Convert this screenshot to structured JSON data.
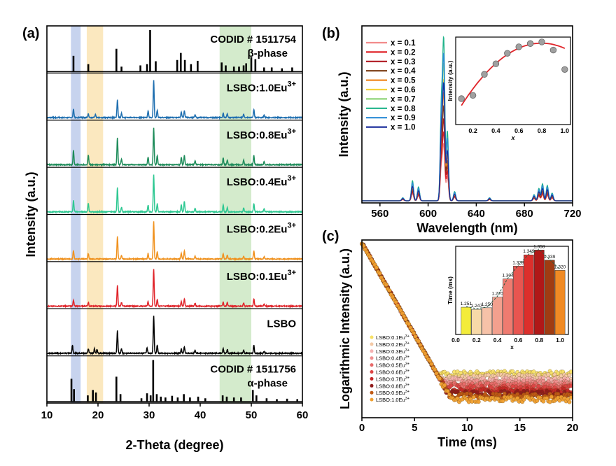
{
  "panels": {
    "a": "(a)",
    "b": "(b)",
    "c": "(c)"
  },
  "chart_data": [
    {
      "type": "line",
      "panel": "(a)",
      "xlabel": "2-Theta (degree)",
      "ylabel": "Intensity (a.u.)",
      "xlim": [
        10,
        60
      ],
      "xticks": [
        10,
        20,
        30,
        40,
        50,
        60
      ],
      "highlight_bands": [
        {
          "x": [
            14.7,
            16.6
          ],
          "color": "#c7d3ee"
        },
        {
          "x": [
            17.8,
            21.0
          ],
          "color": "#fbe8bf"
        },
        {
          "x": [
            43.8,
            50.0
          ],
          "color": "#d4ebcc"
        }
      ],
      "series": [
        {
          "name": "CODID # 1511754",
          "subtitle": "β-phase",
          "color": "#000000",
          "style": "stick",
          "peaks": [
            [
              15.2,
              0.38
            ],
            [
              18.1,
              0.18
            ],
            [
              23.6,
              0.55
            ],
            [
              24.6,
              0.12
            ],
            [
              28.3,
              0.15
            ],
            [
              29.6,
              0.18
            ],
            [
              30.2,
              1.0
            ],
            [
              31.3,
              0.25
            ],
            [
              35.5,
              0.28
            ],
            [
              36.2,
              0.45
            ],
            [
              37.0,
              0.28
            ],
            [
              38.2,
              0.18
            ],
            [
              39.5,
              0.26
            ],
            [
              44.2,
              0.22
            ],
            [
              45.0,
              0.15
            ],
            [
              46.6,
              0.12
            ],
            [
              47.6,
              0.12
            ],
            [
              48.5,
              0.15
            ],
            [
              49.0,
              0.2
            ],
            [
              50.0,
              0.35
            ],
            [
              50.8,
              0.3
            ],
            [
              52.5,
              0.1
            ],
            [
              54.0,
              0.1
            ],
            [
              56.0,
              0.08
            ],
            [
              58.0,
              0.1
            ]
          ]
        },
        {
          "name": "LSBO:1.0Eu",
          "sup": "3+",
          "color": "#1f6fb0",
          "style": "pattern",
          "peaks": [
            [
              15.2,
              0.22
            ],
            [
              18.1,
              0.1
            ],
            [
              19.5,
              0.08
            ],
            [
              23.8,
              0.48
            ],
            [
              24.6,
              0.12
            ],
            [
              29.8,
              0.18
            ],
            [
              30.9,
              1.0
            ],
            [
              31.6,
              0.2
            ],
            [
              36.3,
              0.15
            ],
            [
              36.9,
              0.18
            ],
            [
              39.0,
              0.08
            ],
            [
              44.5,
              0.12
            ],
            [
              45.3,
              0.1
            ],
            [
              48.5,
              0.1
            ],
            [
              50.5,
              0.22
            ],
            [
              52.5,
              0.06
            ]
          ]
        },
        {
          "name": "LSBO:0.8Eu",
          "sup": "3+",
          "color": "#1e8c5a",
          "style": "pattern",
          "peaks": [
            [
              15.2,
              0.38
            ],
            [
              18.1,
              0.25
            ],
            [
              23.8,
              0.72
            ],
            [
              24.6,
              0.15
            ],
            [
              29.8,
              0.2
            ],
            [
              30.9,
              1.0
            ],
            [
              31.6,
              0.25
            ],
            [
              36.3,
              0.2
            ],
            [
              36.9,
              0.25
            ],
            [
              39.0,
              0.1
            ],
            [
              44.5,
              0.18
            ],
            [
              45.3,
              0.12
            ],
            [
              48.5,
              0.12
            ],
            [
              50.5,
              0.25
            ],
            [
              52.5,
              0.08
            ]
          ]
        },
        {
          "name": "LSBO:0.4Eu",
          "sup": "3+",
          "color": "#2ec892",
          "style": "pattern",
          "peaks": [
            [
              15.2,
              0.3
            ],
            [
              18.1,
              0.22
            ],
            [
              23.8,
              0.65
            ],
            [
              24.6,
              0.12
            ],
            [
              29.8,
              0.18
            ],
            [
              30.9,
              1.0
            ],
            [
              31.6,
              0.22
            ],
            [
              36.3,
              0.18
            ],
            [
              36.9,
              0.28
            ],
            [
              39.0,
              0.1
            ],
            [
              44.5,
              0.18
            ],
            [
              45.3,
              0.12
            ],
            [
              48.5,
              0.1
            ],
            [
              50.5,
              0.22
            ],
            [
              52.5,
              0.08
            ]
          ]
        },
        {
          "name": "LSBO:0.2Eu",
          "sup": "3+",
          "color": "#f0921f",
          "style": "pattern",
          "peaks": [
            [
              15.2,
              0.22
            ],
            [
              18.1,
              0.15
            ],
            [
              23.8,
              0.6
            ],
            [
              24.6,
              0.1
            ],
            [
              29.8,
              0.15
            ],
            [
              30.9,
              1.0
            ],
            [
              31.6,
              0.2
            ],
            [
              36.3,
              0.15
            ],
            [
              36.9,
              0.22
            ],
            [
              39.0,
              0.08
            ],
            [
              44.5,
              0.15
            ],
            [
              45.3,
              0.1
            ],
            [
              48.5,
              0.08
            ],
            [
              50.5,
              0.22
            ],
            [
              52.5,
              0.06
            ]
          ]
        },
        {
          "name": "LSBO:0.1Eu",
          "sup": "3+",
          "color": "#e0242a",
          "style": "pattern",
          "peaks": [
            [
              15.2,
              0.15
            ],
            [
              18.1,
              0.1
            ],
            [
              23.8,
              0.55
            ],
            [
              24.6,
              0.1
            ],
            [
              29.8,
              0.12
            ],
            [
              30.9,
              1.0
            ],
            [
              31.6,
              0.18
            ],
            [
              36.3,
              0.12
            ],
            [
              36.9,
              0.2
            ],
            [
              39.0,
              0.08
            ],
            [
              44.5,
              0.12
            ],
            [
              45.3,
              0.1
            ],
            [
              48.5,
              0.08
            ],
            [
              50.5,
              0.2
            ],
            [
              52.5,
              0.06
            ]
          ]
        },
        {
          "name": "LSBO",
          "sup": "",
          "color": "#000000",
          "style": "pattern",
          "peaks": [
            [
              15.0,
              0.22
            ],
            [
              18.1,
              0.12
            ],
            [
              19.3,
              0.12
            ],
            [
              19.8,
              0.1
            ],
            [
              23.8,
              0.6
            ],
            [
              24.6,
              0.12
            ],
            [
              29.6,
              0.15
            ],
            [
              30.9,
              1.0
            ],
            [
              31.6,
              0.22
            ],
            [
              36.3,
              0.12
            ],
            [
              36.9,
              0.18
            ],
            [
              39.0,
              0.08
            ],
            [
              44.5,
              0.12
            ],
            [
              45.3,
              0.1
            ],
            [
              48.5,
              0.08
            ],
            [
              50.5,
              0.22
            ],
            [
              52.5,
              0.06
            ]
          ]
        },
        {
          "name": "CODID # 1511756",
          "subtitle": "α-phase",
          "color": "#000000",
          "style": "stick",
          "peaks": [
            [
              14.8,
              0.55
            ],
            [
              15.3,
              0.3
            ],
            [
              18.0,
              0.15
            ],
            [
              19.0,
              0.28
            ],
            [
              19.6,
              0.22
            ],
            [
              23.6,
              0.6
            ],
            [
              24.4,
              0.18
            ],
            [
              28.5,
              0.08
            ],
            [
              29.6,
              0.2
            ],
            [
              30.3,
              0.15
            ],
            [
              30.8,
              1.0
            ],
            [
              31.5,
              0.18
            ],
            [
              32.3,
              0.12
            ],
            [
              33.2,
              0.1
            ],
            [
              34.5,
              0.14
            ],
            [
              35.6,
              0.1
            ],
            [
              36.8,
              0.18
            ],
            [
              38.0,
              0.1
            ],
            [
              39.6,
              0.12
            ],
            [
              41.0,
              0.08
            ],
            [
              44.4,
              0.15
            ],
            [
              45.2,
              0.12
            ],
            [
              46.6,
              0.1
            ],
            [
              48.0,
              0.1
            ],
            [
              50.3,
              0.28
            ],
            [
              51.0,
              0.15
            ],
            [
              53.0,
              0.08
            ],
            [
              55.0,
              0.06
            ],
            [
              57.0,
              0.07
            ],
            [
              59.0,
              0.06
            ]
          ]
        }
      ]
    },
    {
      "type": "line",
      "panel": "(b)",
      "xlabel": "Wavelength (nm)",
      "ylabel": "Intensity (a.u.)",
      "xlim": [
        545,
        720
      ],
      "xticks": [
        560,
        600,
        640,
        680,
        720
      ],
      "legend_position": "top-left",
      "series": [
        {
          "name": "x = 0.1",
          "color": "#f28b8b",
          "scale": 0.35
        },
        {
          "name": "x = 0.2",
          "color": "#e0242a",
          "scale": 0.42
        },
        {
          "name": "x = 0.3",
          "color": "#b01a22",
          "scale": 0.5
        },
        {
          "name": "x = 0.4",
          "color": "#7a3b12",
          "scale": 0.58
        },
        {
          "name": "x = 0.5",
          "color": "#f08a24",
          "scale": 0.66
        },
        {
          "name": "x = 0.6",
          "color": "#f4d23a",
          "scale": 0.74
        },
        {
          "name": "x = 0.7",
          "color": "#8fd47a",
          "scale": 0.84
        },
        {
          "name": "x = 0.8",
          "color": "#1fb38a",
          "scale": 1.0
        },
        {
          "name": "x = 0.9",
          "color": "#2b8bd6",
          "scale": 0.9
        },
        {
          "name": "x = 1.0",
          "color": "#1c2f9c",
          "scale": 0.72
        }
      ],
      "peaks_nm": [
        [
          579,
          0.02
        ],
        [
          587,
          0.13
        ],
        [
          592,
          0.09
        ],
        [
          611,
          0.6
        ],
        [
          613,
          1.0
        ],
        [
          616,
          0.45
        ],
        [
          622,
          0.06
        ],
        [
          651,
          0.02
        ],
        [
          688,
          0.04
        ],
        [
          692,
          0.08
        ],
        [
          695,
          0.11
        ],
        [
          699,
          0.1
        ],
        [
          703,
          0.05
        ]
      ],
      "inset": {
        "type": "scatter",
        "xlabel": "x",
        "ylabel": "Intensity (a.u.)",
        "xlim": [
          0.05,
          1.05
        ],
        "ylim": [
          0,
          1.08
        ],
        "xticks": [
          0.2,
          0.4,
          0.6,
          0.8,
          1.0
        ],
        "points": {
          "x": [
            0.1,
            0.2,
            0.3,
            0.4,
            0.5,
            0.6,
            0.7,
            0.8,
            0.9,
            1.0
          ],
          "y": [
            0.32,
            0.36,
            0.62,
            0.75,
            0.88,
            0.96,
            1.0,
            1.02,
            0.92,
            0.68
          ]
        },
        "fit_color": "#e0242a",
        "marker_color": "#a0a0a0"
      }
    },
    {
      "type": "scatter",
      "panel": "(c)",
      "xlabel": "Time (ms)",
      "ylabel": "Logarithmic Intensity (a.u.)",
      "xlim": [
        0,
        20
      ],
      "xticks": [
        0,
        5,
        10,
        15,
        20
      ],
      "legend_position": "bottom-left",
      "series": [
        {
          "name": "LSBO:0.1Eu",
          "sup": "3+",
          "color": "#f7e066",
          "floor": 0.24
        },
        {
          "name": "LSBO:0.2Eu",
          "sup": "3+",
          "color": "#f4c9a6",
          "floor": 0.22
        },
        {
          "name": "LSBO:0.3Eu",
          "sup": "3+",
          "color": "#f5b2b2",
          "floor": 0.2
        },
        {
          "name": "LSBO:0.4Eu",
          "sup": "3+",
          "color": "#ef8f8f",
          "floor": 0.185
        },
        {
          "name": "LSBO:0.5Eu",
          "sup": "3+",
          "color": "#e86a6a",
          "floor": 0.17
        },
        {
          "name": "LSBO:0.6Eu",
          "sup": "3+",
          "color": "#dc4444",
          "floor": 0.155
        },
        {
          "name": "LSBO:0.7Eu",
          "sup": "3+",
          "color": "#c62828",
          "floor": 0.14
        },
        {
          "name": "LSBO:0.8Eu",
          "sup": "3+",
          "color": "#8f1a1a",
          "floor": 0.125
        },
        {
          "name": "LSBO:0.9Eu",
          "sup": "3+",
          "color": "#c05a14",
          "floor": 0.11
        },
        {
          "name": "LSBO:1.0Eu",
          "sup": "3+",
          "color": "#f0a030",
          "floor": 0.09
        }
      ],
      "inset": {
        "type": "bar",
        "xlabel": "x",
        "ylabel": "Time (ms)",
        "xlim": [
          0,
          1.08
        ],
        "ylim": [
          1.2,
          1.365
        ],
        "xticks": [
          0.0,
          0.2,
          0.4,
          0.6,
          0.8,
          1.0
        ],
        "x": [
          0.1,
          0.2,
          0.3,
          0.4,
          0.5,
          0.6,
          0.7,
          0.8,
          0.9,
          1.0
        ],
        "values": [
          1.251,
          1.247,
          1.25,
          1.27,
          1.304,
          1.328,
          1.349,
          1.358,
          1.339,
          1.32
        ],
        "labels": [
          "1.251",
          "1.247",
          "1.250",
          "1.270",
          "1.304",
          "1.328",
          "1.349",
          "1.358",
          "1.339",
          "1.320"
        ],
        "colors": [
          "#f3ec3a",
          "#f7d9a8",
          "#f6c2a8",
          "#f3a08e",
          "#ef7b70",
          "#e85550",
          "#dc2f2c",
          "#b01818",
          "#a03c12",
          "#f08a24"
        ]
      }
    }
  ]
}
